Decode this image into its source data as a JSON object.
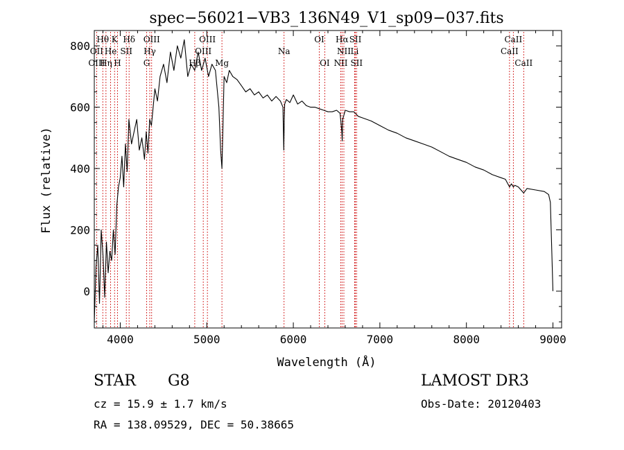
{
  "chart_data": {
    "type": "line",
    "title": "spec−56021−VB3_136N49_V1_sp09−037.fits",
    "xlabel": "Wavelength (Å)",
    "ylabel": "Flux (relative)",
    "xlim": [
      3700,
      9100
    ],
    "ylim": [
      -120,
      850
    ],
    "xticks": [
      4000,
      5000,
      6000,
      7000,
      8000,
      9000
    ],
    "yticks": [
      0,
      200,
      400,
      600,
      800
    ],
    "grid": false,
    "series": [
      {
        "name": "flux",
        "x": [
          3700,
          3720,
          3740,
          3760,
          3780,
          3800,
          3820,
          3840,
          3860,
          3880,
          3900,
          3920,
          3940,
          3960,
          3980,
          4000,
          4020,
          4040,
          4060,
          4080,
          4100,
          4130,
          4160,
          4190,
          4220,
          4250,
          4280,
          4300,
          4320,
          4340,
          4360,
          4380,
          4400,
          4430,
          4460,
          4500,
          4540,
          4580,
          4620,
          4660,
          4700,
          4740,
          4780,
          4820,
          4860,
          4900,
          4940,
          4980,
          5020,
          5060,
          5100,
          5140,
          5160,
          5175,
          5185,
          5200,
          5230,
          5260,
          5300,
          5350,
          5400,
          5450,
          5500,
          5550,
          5600,
          5650,
          5700,
          5750,
          5800,
          5850,
          5880,
          5890,
          5895,
          5900,
          5920,
          5960,
          6000,
          6050,
          6100,
          6150,
          6200,
          6250,
          6300,
          6350,
          6400,
          6450,
          6500,
          6540,
          6560,
          6565,
          6570,
          6600,
          6650,
          6700,
          6750,
          6800,
          6900,
          7000,
          7100,
          7200,
          7300,
          7400,
          7500,
          7600,
          7700,
          7800,
          7900,
          8000,
          8100,
          8200,
          8300,
          8400,
          8450,
          8498,
          8520,
          8542,
          8560,
          8600,
          8662,
          8700,
          8800,
          8900,
          8950,
          8970,
          8985,
          9000
        ],
        "values": [
          -100,
          80,
          150,
          -40,
          200,
          120,
          -20,
          160,
          60,
          130,
          100,
          200,
          120,
          280,
          340,
          370,
          440,
          340,
          480,
          390,
          560,
          480,
          520,
          560,
          460,
          500,
          430,
          520,
          450,
          560,
          540,
          600,
          660,
          620,
          700,
          740,
          680,
          780,
          720,
          800,
          760,
          820,
          700,
          740,
          720,
          780,
          720,
          760,
          700,
          740,
          720,
          600,
          460,
          400,
          520,
          700,
          680,
          720,
          700,
          690,
          670,
          650,
          660,
          640,
          650,
          630,
          640,
          620,
          635,
          620,
          600,
          460,
          560,
          610,
          625,
          615,
          640,
          610,
          620,
          605,
          600,
          600,
          595,
          590,
          585,
          585,
          590,
          580,
          520,
          490,
          560,
          590,
          585,
          585,
          570,
          565,
          555,
          540,
          525,
          515,
          500,
          490,
          480,
          470,
          455,
          440,
          430,
          420,
          405,
          395,
          380,
          370,
          365,
          340,
          350,
          340,
          345,
          340,
          320,
          335,
          330,
          325,
          315,
          290,
          150,
          0
        ]
      }
    ],
    "line_labels": [
      {
        "label": "Hθ",
        "wavelength": 3798,
        "row": 1
      },
      {
        "label": "OII",
        "wavelength": 3727,
        "row": 2
      },
      {
        "label": "OIII",
        "wavelength": 3727,
        "row": 3
      },
      {
        "label": "K",
        "wavelength": 3934,
        "row": 1
      },
      {
        "label": "He",
        "wavelength": 3889,
        "row": 2
      },
      {
        "label": "Hη",
        "wavelength": 3835,
        "row": 3
      },
      {
        "label": "Hδ",
        "wavelength": 4102,
        "row": 1
      },
      {
        "label": "SII",
        "wavelength": 4070,
        "row": 2
      },
      {
        "label": "H",
        "wavelength": 3968,
        "row": 3
      },
      {
        "label": "OIII",
        "wavelength": 4363,
        "row": 1
      },
      {
        "label": "Hγ",
        "wavelength": 4341,
        "row": 2
      },
      {
        "label": "G",
        "wavelength": 4305,
        "row": 3
      },
      {
        "label": "OIII",
        "wavelength": 5007,
        "row": 1
      },
      {
        "label": "OIII",
        "wavelength": 4959,
        "row": 2
      },
      {
        "label": "Hβ",
        "wavelength": 4861,
        "row": 3
      },
      {
        "label": "Mg",
        "wavelength": 5175,
        "row": 3
      },
      {
        "label": "Na",
        "wavelength": 5893,
        "row": 2
      },
      {
        "label": "OI",
        "wavelength": 6300,
        "row": 1
      },
      {
        "label": "OI",
        "wavelength": 6363,
        "row": 3
      },
      {
        "label": "Hα",
        "wavelength": 6563,
        "row": 1
      },
      {
        "label": "NII",
        "wavelength": 6584,
        "row": 2
      },
      {
        "label": "NII",
        "wavelength": 6548,
        "row": 3
      },
      {
        "label": "SII",
        "wavelength": 6717,
        "row": 1
      },
      {
        "label": "Li",
        "wavelength": 6708,
        "row": 2
      },
      {
        "label": "SII",
        "wavelength": 6731,
        "row": 3
      },
      {
        "label": "CaII",
        "wavelength": 8542,
        "row": 1
      },
      {
        "label": "CaII",
        "wavelength": 8498,
        "row": 2
      },
      {
        "label": "CaII",
        "wavelength": 8662,
        "row": 3
      }
    ],
    "colors": {
      "spectrum": "#000000",
      "line_markers": "#cc0000",
      "axes": "#000000"
    }
  },
  "info": {
    "object_class": "STAR",
    "spectral_type": "G8",
    "survey": "LAMOST DR3",
    "redshift_text": "cz = 15.9 ± 1.7 km/s",
    "obs_date_text": "Obs-Date: 20120403",
    "coords_text": "RA = 138.09529, DEC =  50.38665"
  }
}
